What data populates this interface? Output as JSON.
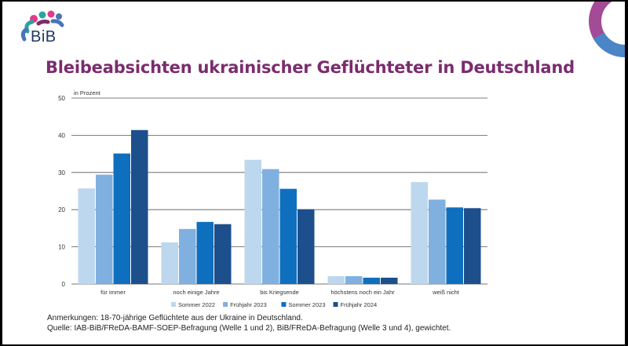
{
  "logo": {
    "text": "BiB"
  },
  "title": "Bleibeabsichten ukrainischer Geflüchteter in Deutschland",
  "chart_data": {
    "type": "bar",
    "title": "",
    "ylabel": "in Prozent",
    "xlabel": "",
    "ylim": [
      0,
      50
    ],
    "yticks": [
      0,
      10,
      20,
      30,
      40,
      50
    ],
    "grid": true,
    "legend_position": "bottom",
    "categories": [
      "für immer",
      "noch einige Jahre",
      "bis Kriegsende",
      "höchstens noch ein Jahr",
      "weiß nicht"
    ],
    "series": [
      {
        "name": "Sommer 2022",
        "color": "#bdd7ee",
        "values": [
          25.7,
          11.2,
          33.4,
          2.1,
          27.4
        ]
      },
      {
        "name": "Frühjahr 2023",
        "color": "#7fb0e0",
        "values": [
          29.4,
          14.8,
          30.9,
          2.1,
          22.7
        ]
      },
      {
        "name": "Sommer 2023",
        "color": "#0f6fbf",
        "values": [
          35.1,
          16.7,
          25.6,
          1.7,
          20.6
        ]
      },
      {
        "name": "Frühjahr 2024",
        "color": "#1c4f8c",
        "values": [
          41.4,
          16.1,
          20.1,
          1.7,
          20.4
        ]
      }
    ]
  },
  "notes": {
    "line1": "Anmerkungen: 18-70-jährige Geflüchtete aus der Ukraine in Deutschland.",
    "line2": "Quelle: IAB-BiB/FReDA-BAMF-SOEP-Befragung (Welle 1 und 2), BiB/FReDA-Befragung (Welle 3 und 4), gewichtet."
  }
}
